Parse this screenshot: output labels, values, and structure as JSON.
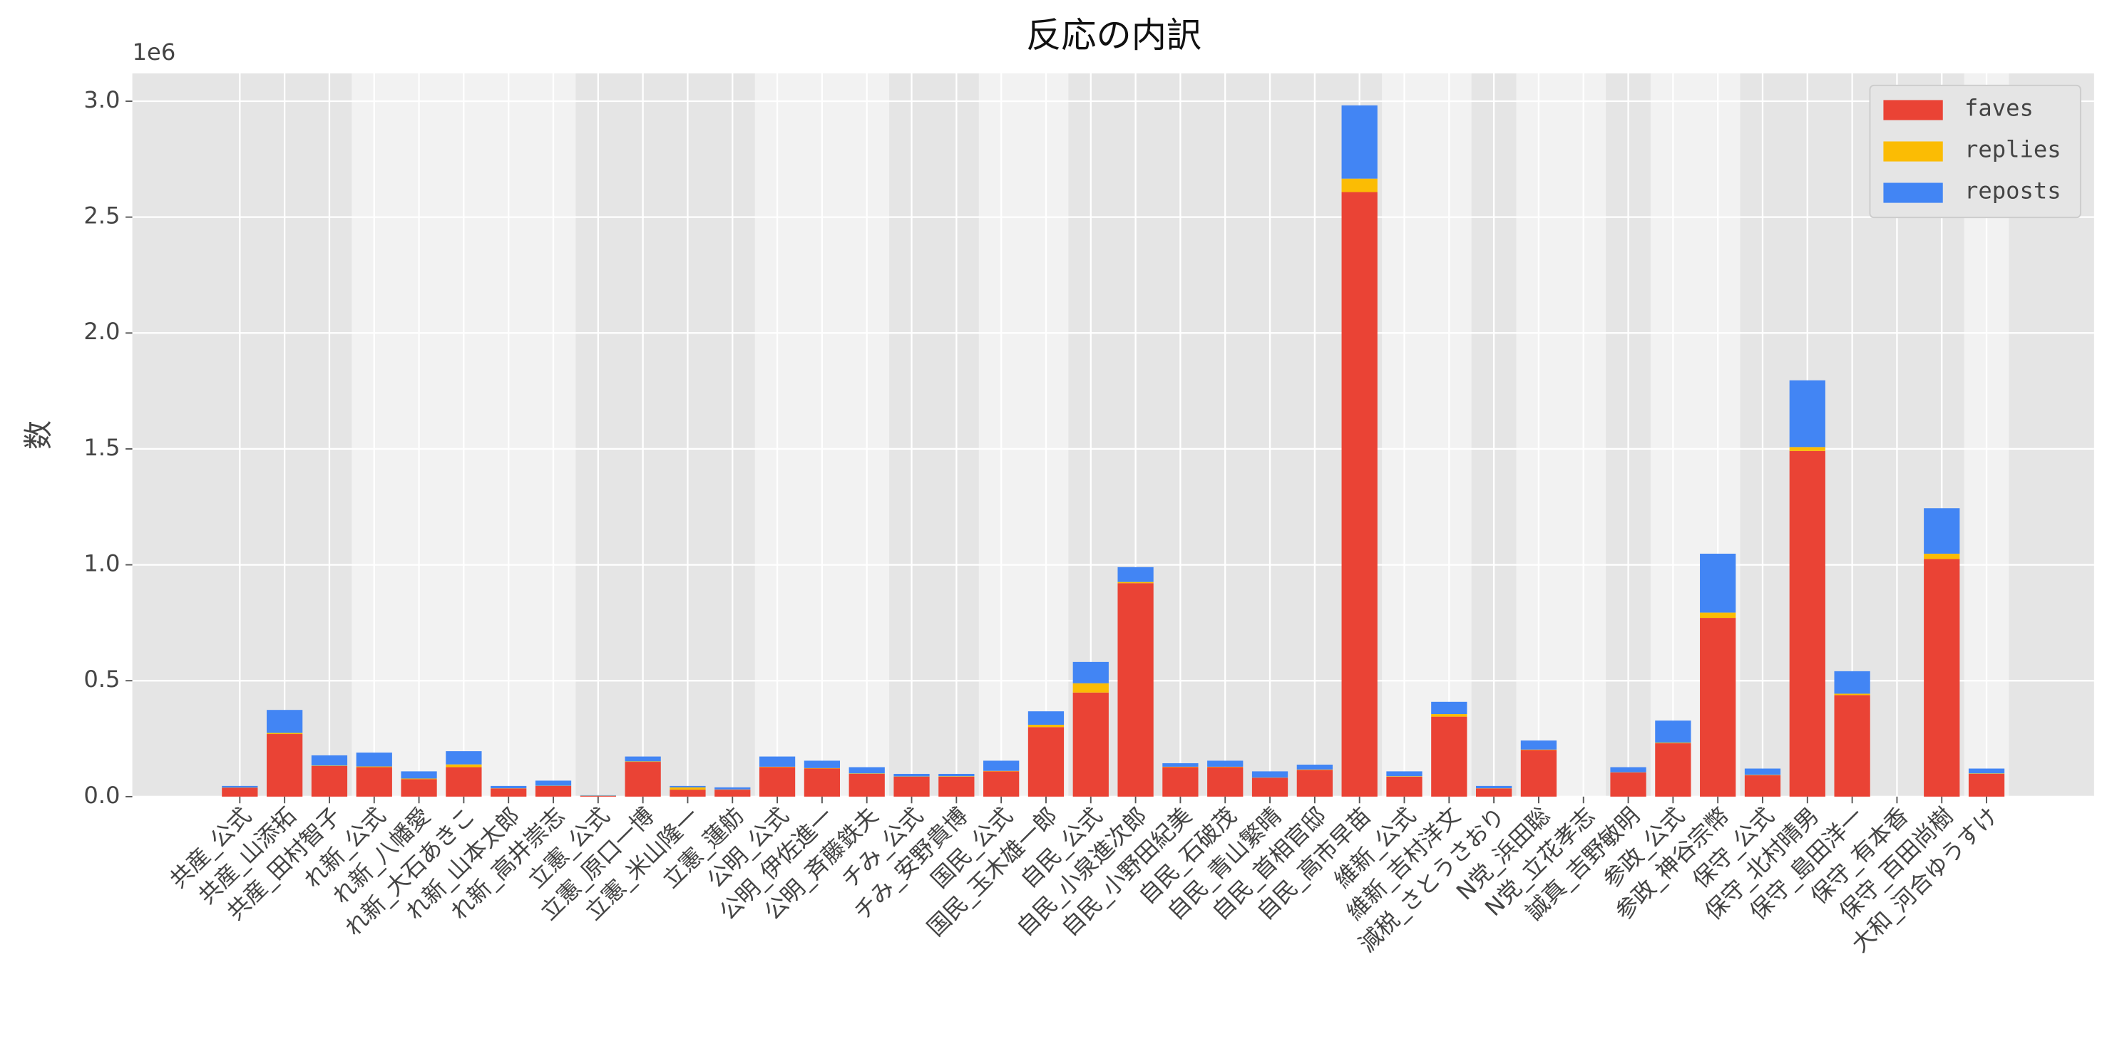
{
  "chart_data": {
    "type": "stacked_bar",
    "title": "反応の内訳",
    "y_label": "数",
    "y_offset_label": "1e6",
    "categories": [
      "共産_公式",
      "共産_山添拓",
      "共産_田村智子",
      "れ新_公式",
      "れ新_八幡愛",
      "れ新_大石あきこ",
      "れ新_山本太郎",
      "れ新_高井崇志",
      "立憲_公式",
      "立憲_原口一博",
      "立憲_米山隆一",
      "立憲_蓮舫",
      "公明_公式",
      "公明_伊佐進一",
      "公明_斉藤鉄夫",
      "チみ_公式",
      "チみ_安野貴博",
      "国民_公式",
      "国民_玉木雄一郎",
      "自民_公式",
      "自民_小泉進次郎",
      "自民_小野田紀美",
      "自民_石破茂",
      "自民_青山繁晴",
      "自民_首相官邸",
      "自民_高市早苗",
      "維新_公式",
      "維新_吉村洋文",
      "減税_さとうさおり",
      "N党_浜田聡",
      "N党_立花孝志",
      "誠真_吉野敏明",
      "参政_公式",
      "参政_神谷宗幣",
      "保守_公式",
      "保守_北村晴男",
      "保守_島田洋一",
      "保守_有本香",
      "保守_百田尚樹",
      "大和_河合ゆうすけ"
    ],
    "series": [
      {
        "name": "faves",
        "color": "#ea4335",
        "values": [
          38000,
          270000,
          132000,
          127000,
          75000,
          127000,
          35000,
          46000,
          3000,
          150000,
          30000,
          30000,
          127000,
          121000,
          98000,
          86000,
          86000,
          109000,
          300000,
          449000,
          921000,
          127000,
          127000,
          81000,
          115000,
          2608000,
          86000,
          345000,
          35000,
          201000,
          0,
          104000,
          230000,
          771000,
          92000,
          1491000,
          438000,
          0,
          1025000,
          98000
        ]
      },
      {
        "name": "replies",
        "color": "#fbbc04",
        "values": [
          1000,
          5000,
          2000,
          3000,
          3000,
          12000,
          1000,
          1000,
          1000,
          2000,
          10000,
          1000,
          2000,
          2000,
          2000,
          1000,
          2000,
          2000,
          10000,
          40000,
          5000,
          2000,
          2000,
          1000,
          2000,
          58000,
          2000,
          11000,
          1000,
          2000,
          0,
          1000,
          3000,
          23000,
          2000,
          17000,
          6000,
          0,
          23000,
          2000
        ]
      },
      {
        "name": "reposts",
        "color": "#4285f4",
        "values": [
          7000,
          99000,
          44000,
          60000,
          31000,
          57000,
          10000,
          22000,
          2000,
          21000,
          6000,
          9000,
          44000,
          32000,
          27000,
          11000,
          10000,
          44000,
          58000,
          92000,
          64000,
          15000,
          26000,
          27000,
          21000,
          316000,
          21000,
          53000,
          10000,
          39000,
          0,
          22000,
          95000,
          254000,
          27000,
          288000,
          97000,
          0,
          196000,
          21000
        ]
      }
    ],
    "ylim": [
      0,
      3120000
    ],
    "yticks": [
      {
        "value": 0,
        "label": "0.0"
      },
      {
        "value": 500000,
        "label": "0.5"
      },
      {
        "value": 1000000,
        "label": "1.0"
      },
      {
        "value": 1500000,
        "label": "1.5"
      },
      {
        "value": 2000000,
        "label": "2.0"
      },
      {
        "value": 2500000,
        "label": "2.5"
      },
      {
        "value": 3000000,
        "label": "3.0"
      }
    ],
    "grid": true,
    "legend": "upper right"
  }
}
